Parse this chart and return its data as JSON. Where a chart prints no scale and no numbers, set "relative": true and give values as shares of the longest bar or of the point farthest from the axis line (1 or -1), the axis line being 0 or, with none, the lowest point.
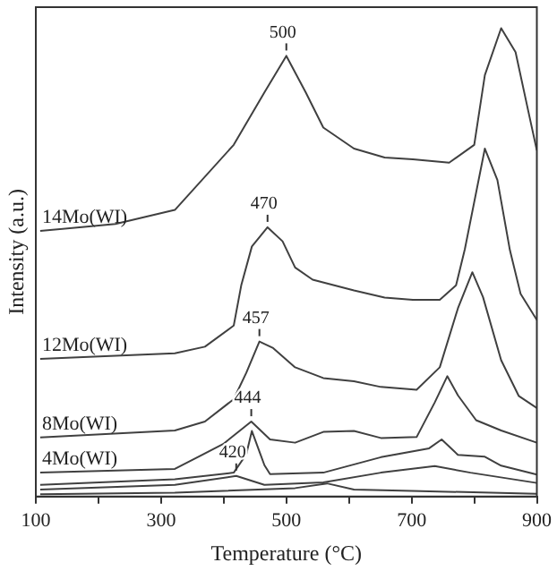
{
  "chart_data": {
    "type": "line",
    "xlabel": "Temperature (°C)",
    "ylabel": "Intensity (a.u.)",
    "relative": true,
    "grid": false,
    "legend": false,
    "marker": "none",
    "line_style": "solid",
    "xlim": [
      100,
      900
    ],
    "xticks": [
      100,
      {
        "value": 200,
        "label": null
      },
      300,
      {
        "value": 400,
        "label": null
      },
      500,
      {
        "value": 600,
        "label": null
      },
      700,
      {
        "value": 800,
        "label": null
      },
      900
    ],
    "series": [
      {
        "name": "14Mo(WI)",
        "color": "#404040",
        "x": [
          107,
          227,
          322,
          416,
          465,
          500,
          531,
          559,
          608,
          657,
          702,
          760,
          800,
          817,
          843,
          866,
          886,
          900
        ],
        "values": [
          0.567,
          0.582,
          0.612,
          0.751,
          0.863,
          0.941,
          0.863,
          0.788,
          0.743,
          0.724,
          0.72,
          0.713,
          0.751,
          0.9,
          1,
          0.949,
          0.825,
          0.739
        ]
      },
      {
        "name": "12Mo(WI)",
        "color": "#404040",
        "x": [
          107,
          322,
          370,
          416,
          428,
          445,
          470,
          494,
          514,
          542,
          608,
          657,
          702,
          745,
          771,
          785,
          817,
          837,
          857,
          874,
          900
        ],
        "values": [
          0.294,
          0.306,
          0.32,
          0.365,
          0.451,
          0.534,
          0.575,
          0.545,
          0.489,
          0.463,
          0.44,
          0.425,
          0.42,
          0.42,
          0.451,
          0.528,
          0.743,
          0.676,
          0.526,
          0.433,
          0.377
        ]
      },
      {
        "name": "8Mo(WI)",
        "color": "#404040",
        "x": [
          107,
          322,
          370,
          416,
          436,
          457,
          479,
          514,
          559,
          608,
          651,
          708,
          745,
          774,
          797,
          814,
          843,
          871,
          900
        ],
        "values": [
          0.126,
          0.141,
          0.16,
          0.208,
          0.264,
          0.331,
          0.317,
          0.276,
          0.253,
          0.246,
          0.234,
          0.228,
          0.276,
          0.402,
          0.479,
          0.426,
          0.291,
          0.215,
          0.189
        ]
      },
      {
        "name": "4Mo(WI)",
        "color": "#404040",
        "x": [
          107,
          322,
          399,
          444,
          474,
          514,
          559,
          608,
          651,
          708,
          737,
          757,
          774,
          803,
          843,
          900
        ],
        "values": [
          0.051,
          0.059,
          0.112,
          0.16,
          0.122,
          0.115,
          0.138,
          0.14,
          0.125,
          0.127,
          0.201,
          0.257,
          0.216,
          0.163,
          0.141,
          0.115
        ]
      },
      {
        "color": "#404040",
        "x": [
          107,
          322,
          416,
          436,
          445,
          465,
          474,
          559,
          651,
          728,
          748,
          774,
          817,
          843,
          900
        ],
        "values": [
          0.025,
          0.037,
          0.051,
          0.09,
          0.14,
          0.067,
          0.048,
          0.051,
          0.084,
          0.103,
          0.122,
          0.089,
          0.085,
          0.066,
          0.047
        ]
      },
      {
        "color": "#404040",
        "x": [
          107,
          322,
          420,
          465,
          559,
          651,
          737,
          794,
          900
        ],
        "values": [
          0.015,
          0.025,
          0.044,
          0.025,
          0.03,
          0.051,
          0.065,
          0.051,
          0.029
        ]
      },
      {
        "color": "#404040",
        "x": [
          107,
          322,
          514,
          565,
          608,
          700,
          900
        ],
        "values": [
          0.005,
          0.008,
          0.018,
          0.028,
          0.015,
          0.012,
          0.006
        ]
      }
    ],
    "annotations": [
      {
        "text": "500",
        "x": 500,
        "y": 0.941
      },
      {
        "text": "470",
        "x": 470,
        "y": 0.575
      },
      {
        "text": "457",
        "x": 457,
        "y": 0.331
      },
      {
        "text": "444",
        "x": 444,
        "y": 0.16
      },
      {
        "text": "420",
        "x": 420,
        "y": 0.044
      }
    ]
  }
}
